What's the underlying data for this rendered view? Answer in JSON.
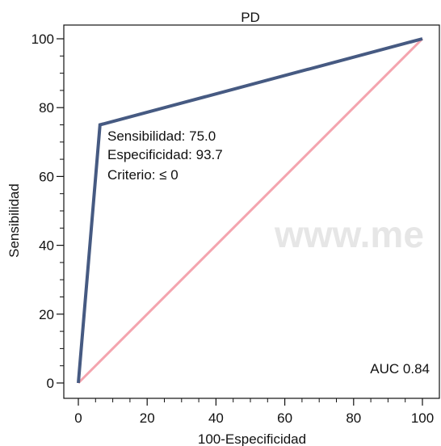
{
  "chart_data": {
    "type": "line",
    "title": "PD",
    "xlabel": "100-Especificidad",
    "ylabel": "Sensibilidad",
    "xlim": [
      0,
      100
    ],
    "ylim": [
      0,
      100
    ],
    "x_ticks": [
      0,
      20,
      40,
      60,
      80,
      100
    ],
    "y_ticks": [
      0,
      20,
      40,
      60,
      80,
      100
    ],
    "grid": false,
    "series": [
      {
        "color": "#465a82",
        "points": [
          {
            "x": 0,
            "y": 0
          },
          {
            "x": 6.3,
            "y": 75
          },
          {
            "x": 100,
            "y": 100
          }
        ]
      },
      {
        "color": "#f4a4ae",
        "points": [
          {
            "x": 0,
            "y": 0
          },
          {
            "x": 100,
            "y": 100
          }
        ]
      }
    ],
    "annotations": [
      "Sensibilidad: 75.0",
      "Especificidad: 93.7",
      "Criterio: ≤ 0"
    ],
    "auc_label": "AUC 0.84",
    "watermark": "www.me"
  }
}
